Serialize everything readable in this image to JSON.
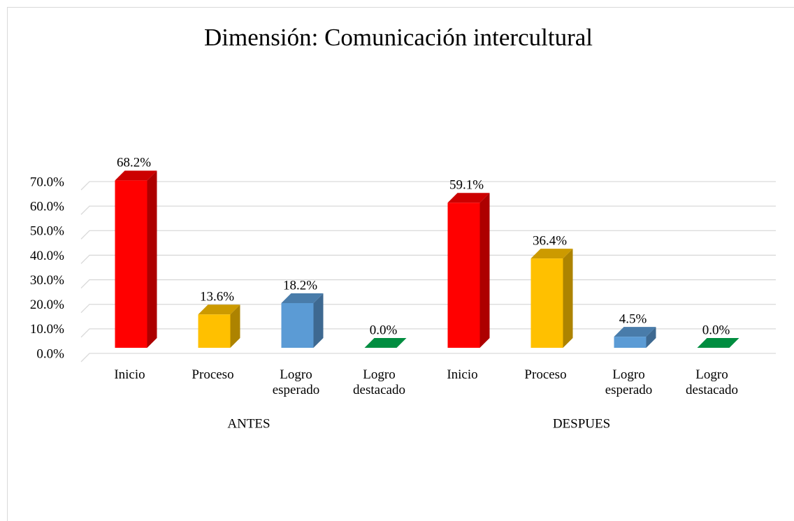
{
  "chart_data": {
    "type": "bar3d",
    "title": "Dimensión: Comunicación intercultural",
    "groups": [
      "ANTES",
      "DESPUES"
    ],
    "categories": [
      "Inicio",
      "Proceso",
      "Logro esperado",
      "Logro destacado",
      "Inicio",
      "Proceso",
      "Logro esperado",
      "Logro destacado"
    ],
    "values": [
      68.2,
      13.6,
      18.2,
      0.0,
      59.1,
      36.4,
      4.5,
      0.0
    ],
    "value_labels": [
      "68.2%",
      "13.6%",
      "18.2%",
      "0.0%",
      "59.1%",
      "36.4%",
      "4.5%",
      "0.0%"
    ],
    "colors": [
      "#ff0000",
      "#ffc000",
      "#5b9bd5",
      "#00b050",
      "#ff0000",
      "#ffc000",
      "#5b9bd5",
      "#00b050"
    ],
    "ylim": [
      0,
      70
    ],
    "yticks": [
      {
        "value": 0,
        "label": "0.0%"
      },
      {
        "value": 10,
        "label": "10.0%"
      },
      {
        "value": 20,
        "label": "20.0%"
      },
      {
        "value": 30,
        "label": "30.0%"
      },
      {
        "value": 40,
        "label": "40.0%"
      },
      {
        "value": 50,
        "label": "50.0%"
      },
      {
        "value": 60,
        "label": "60.0%"
      },
      {
        "value": 70,
        "label": "70.0%"
      }
    ],
    "grid": true
  }
}
